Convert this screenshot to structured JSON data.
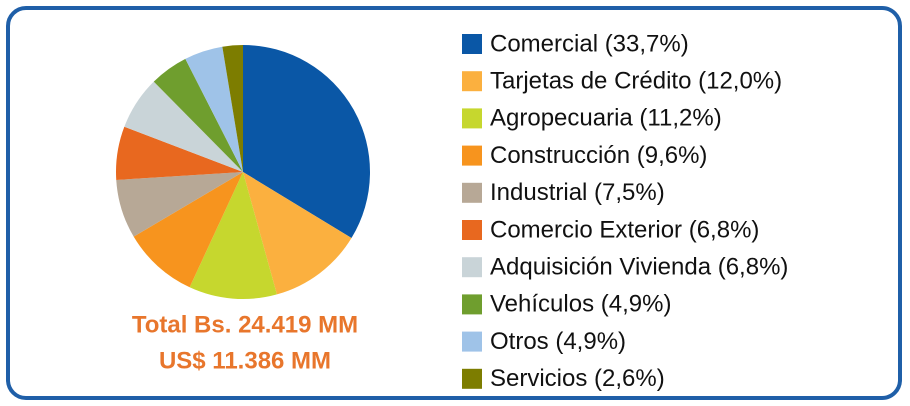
{
  "chart_data": {
    "type": "pie",
    "categories": [
      "Comercial (33,7%)",
      "Tarjetas de Crédito (12,0%)",
      "Agropecuaria (11,2%)",
      "Construcción (9,6%)",
      "Industrial (7,5%)",
      "Comercio Exterior (6,8%)",
      "Adquisición Vivienda (6,8%)",
      "Vehículos (4,9%)",
      "Otros (4,9%)",
      "Servicios (2,6%)"
    ],
    "values": [
      33.7,
      12.0,
      11.2,
      9.6,
      7.5,
      6.8,
      6.8,
      4.9,
      4.9,
      2.6
    ],
    "colors": [
      "#0a57a6",
      "#fbb03f",
      "#c6d72e",
      "#f7941e",
      "#b7a896",
      "#e8681f",
      "#c9d4d8",
      "#6f9e2e",
      "#9fc3e8",
      "#7d7d00"
    ],
    "annotations": [
      "Total Bs. 24.419 MM",
      "US$ 11.386 MM"
    ]
  }
}
